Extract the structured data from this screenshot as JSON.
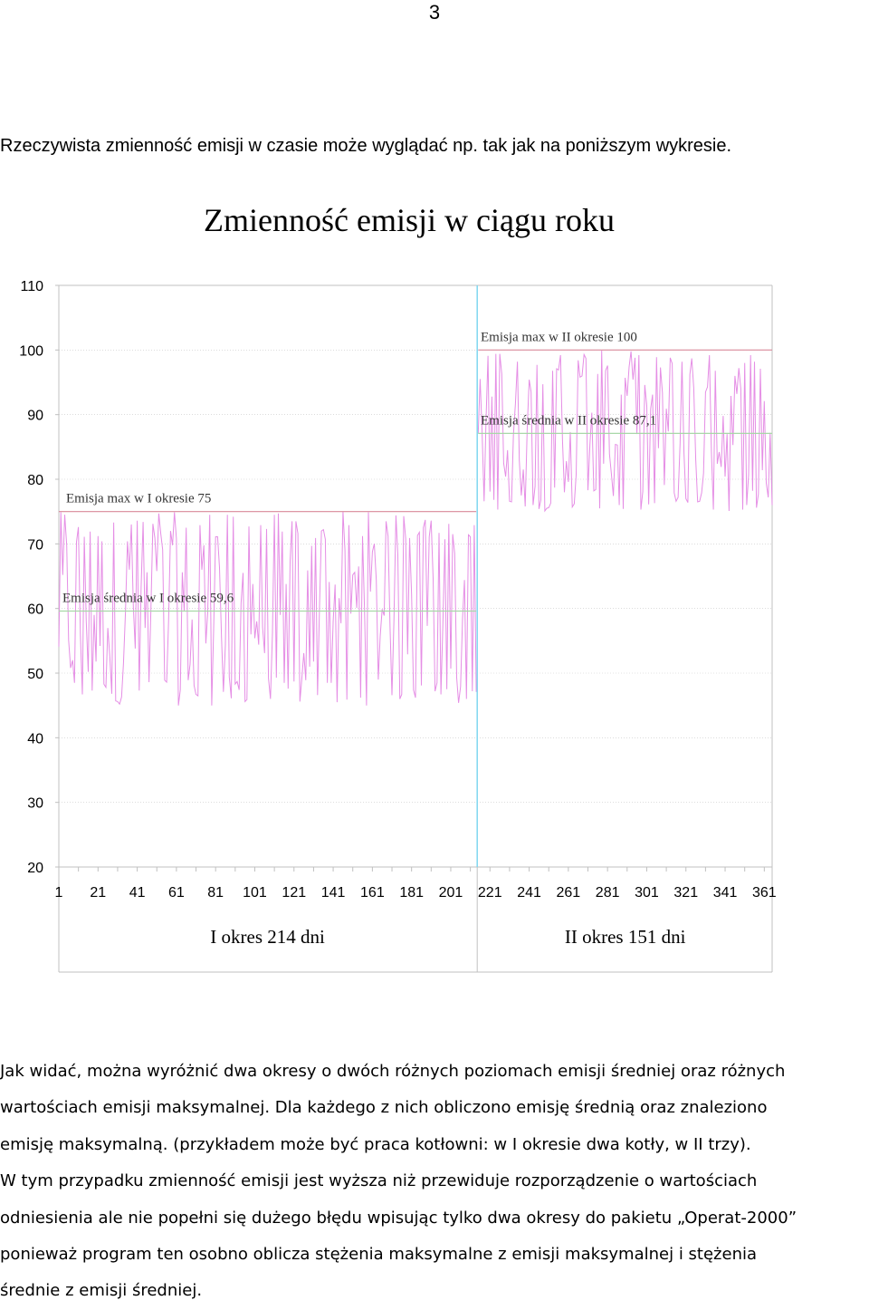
{
  "page_number": "3",
  "intro_text": "Rzeczywista zmienność emisji w czasie może wyglądać np. tak jak na poniższym wykresie.",
  "chart_data": {
    "type": "line",
    "title": "Zmienność emisji w ciągu roku",
    "ylim": [
      20,
      110
    ],
    "yticks": [
      "20",
      "30",
      "40",
      "50",
      "60",
      "70",
      "80",
      "90",
      "100",
      "110"
    ],
    "xlim": [
      1,
      365
    ],
    "xticks": [
      "1",
      "21",
      "41",
      "61",
      "81",
      "101",
      "121",
      "141",
      "161",
      "181",
      "201",
      "221",
      "241",
      "261",
      "281",
      "301",
      "321",
      "341",
      "361"
    ],
    "period_split_day": 214,
    "periods": [
      {
        "label": "I okres 214 dni",
        "start": 1,
        "end": 214
      },
      {
        "label": "II okres 151 dni",
        "start": 215,
        "end": 365
      }
    ],
    "reference_lines": [
      {
        "label": "Emisja max  w I okresie 75",
        "value": 75,
        "from": 1,
        "to": 214,
        "kind": "max"
      },
      {
        "label": "Emisja średnia w I okresie 59,6",
        "value": 59.6,
        "from": 1,
        "to": 214,
        "kind": "mean"
      },
      {
        "label": "Emisja max w II okresie 100",
        "value": 100,
        "from": 215,
        "to": 365,
        "kind": "max"
      },
      {
        "label": "Emisja średnia w II okresie 87,1",
        "value": 87.1,
        "from": 215,
        "to": 365,
        "kind": "mean"
      }
    ],
    "series": [
      {
        "period_1_range": [
          45,
          75
        ],
        "period_2_range": [
          75,
          100
        ],
        "values": []
      }
    ],
    "colors": {
      "series": "#e58ee5",
      "max_line": "#d98a9a",
      "mean_line": "#a8d8a8",
      "divider": "#7fd7f0",
      "grid": "#c8c8c8",
      "axis": "#c0c0c0"
    },
    "grid": true
  },
  "paragraph_lines": [
    "Jak widać, można wyróżnić dwa okresy o dwóch różnych poziomach emisji średniej oraz różnych",
    "wartościach emisji maksymalnej. Dla każdego z nich obliczono emisję średnią oraz znaleziono",
    "emisję maksymalną. (przykładem może być praca kotłowni: w I okresie dwa kotły, w II  trzy).",
    "W tym przypadku zmienność emisji  jest wyższa niż przewiduje rozporządzenie o wartościach",
    "odniesienia ale nie popełni się dużego błędu wpisując  tylko dwa okresy do pakietu „Operat-2000”",
    "ponieważ program ten osobno oblicza stężenia maksymalne z emisji maksymalnej i stężenia",
    "średnie z emisji średniej."
  ]
}
